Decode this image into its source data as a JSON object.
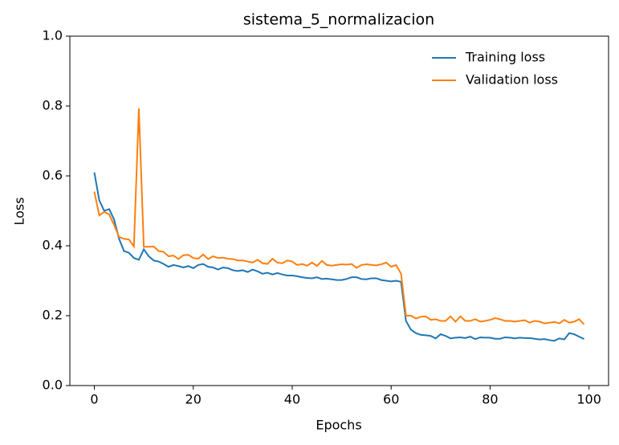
{
  "chart_data": {
    "type": "line",
    "title": "sistema_5_normalizacion",
    "x_label": "Epochs",
    "y_label": "Loss",
    "x": [
      0,
      1,
      2,
      3,
      4,
      5,
      6,
      7,
      8,
      9,
      10,
      11,
      12,
      13,
      14,
      15,
      16,
      17,
      18,
      19,
      20,
      21,
      22,
      23,
      24,
      25,
      26,
      27,
      28,
      29,
      30,
      31,
      32,
      33,
      34,
      35,
      36,
      37,
      38,
      39,
      40,
      41,
      42,
      43,
      44,
      45,
      46,
      47,
      48,
      49,
      50,
      51,
      52,
      53,
      54,
      55,
      56,
      57,
      58,
      59,
      60,
      61,
      62,
      63,
      64,
      65,
      66,
      67,
      68,
      69,
      70,
      71,
      72,
      73,
      74,
      75,
      76,
      77,
      78,
      79,
      80,
      81,
      82,
      83,
      84,
      85,
      86,
      87,
      88,
      89,
      90,
      91,
      92,
      93,
      94,
      95,
      96,
      97,
      98,
      99
    ],
    "series": [
      {
        "name": "Training loss",
        "color": "#1f77b4",
        "values": [
          0.61,
          0.53,
          0.5,
          0.505,
          0.475,
          0.42,
          0.385,
          0.38,
          0.365,
          0.36,
          0.39,
          0.37,
          0.358,
          0.355,
          0.348,
          0.34,
          0.345,
          0.342,
          0.338,
          0.342,
          0.336,
          0.345,
          0.348,
          0.34,
          0.338,
          0.332,
          0.338,
          0.336,
          0.33,
          0.328,
          0.33,
          0.325,
          0.332,
          0.327,
          0.32,
          0.323,
          0.318,
          0.322,
          0.318,
          0.315,
          0.315,
          0.313,
          0.31,
          0.308,
          0.307,
          0.31,
          0.305,
          0.306,
          0.304,
          0.302,
          0.302,
          0.305,
          0.31,
          0.31,
          0.305,
          0.304,
          0.307,
          0.307,
          0.302,
          0.3,
          0.298,
          0.3,
          0.297,
          0.185,
          0.16,
          0.15,
          0.145,
          0.144,
          0.142,
          0.135,
          0.147,
          0.142,
          0.135,
          0.137,
          0.138,
          0.136,
          0.14,
          0.133,
          0.138,
          0.137,
          0.137,
          0.134,
          0.134,
          0.138,
          0.137,
          0.135,
          0.137,
          0.136,
          0.136,
          0.134,
          0.132,
          0.133,
          0.13,
          0.128,
          0.135,
          0.132,
          0.15,
          0.147,
          0.14,
          0.133
        ]
      },
      {
        "name": "Validation loss",
        "color": "#ff7f0e",
        "values": [
          0.555,
          0.487,
          0.497,
          0.49,
          0.46,
          0.425,
          0.42,
          0.418,
          0.398,
          0.793,
          0.397,
          0.397,
          0.398,
          0.385,
          0.383,
          0.37,
          0.372,
          0.362,
          0.373,
          0.374,
          0.365,
          0.363,
          0.375,
          0.362,
          0.37,
          0.365,
          0.366,
          0.363,
          0.362,
          0.358,
          0.358,
          0.355,
          0.352,
          0.36,
          0.35,
          0.348,
          0.363,
          0.352,
          0.35,
          0.358,
          0.355,
          0.345,
          0.348,
          0.343,
          0.352,
          0.342,
          0.357,
          0.345,
          0.343,
          0.345,
          0.347,
          0.346,
          0.348,
          0.337,
          0.345,
          0.347,
          0.345,
          0.344,
          0.347,
          0.352,
          0.34,
          0.345,
          0.32,
          0.2,
          0.2,
          0.192,
          0.197,
          0.198,
          0.188,
          0.19,
          0.185,
          0.185,
          0.198,
          0.183,
          0.198,
          0.185,
          0.185,
          0.19,
          0.183,
          0.185,
          0.188,
          0.193,
          0.19,
          0.185,
          0.185,
          0.183,
          0.185,
          0.187,
          0.18,
          0.185,
          0.183,
          0.178,
          0.18,
          0.182,
          0.178,
          0.188,
          0.18,
          0.183,
          0.19,
          0.175
        ]
      }
    ],
    "xlim": [
      -4.95,
      103.95
    ],
    "ylim": [
      0,
      1
    ],
    "xticks": [
      0,
      20,
      40,
      60,
      80,
      100
    ],
    "yticks": [
      {
        "value": 0,
        "label": "0.0"
      },
      0.2,
      0.4,
      0.6,
      0.8,
      {
        "value": 1,
        "label": "1.0"
      }
    ],
    "grid": false,
    "legend": "upper right"
  }
}
